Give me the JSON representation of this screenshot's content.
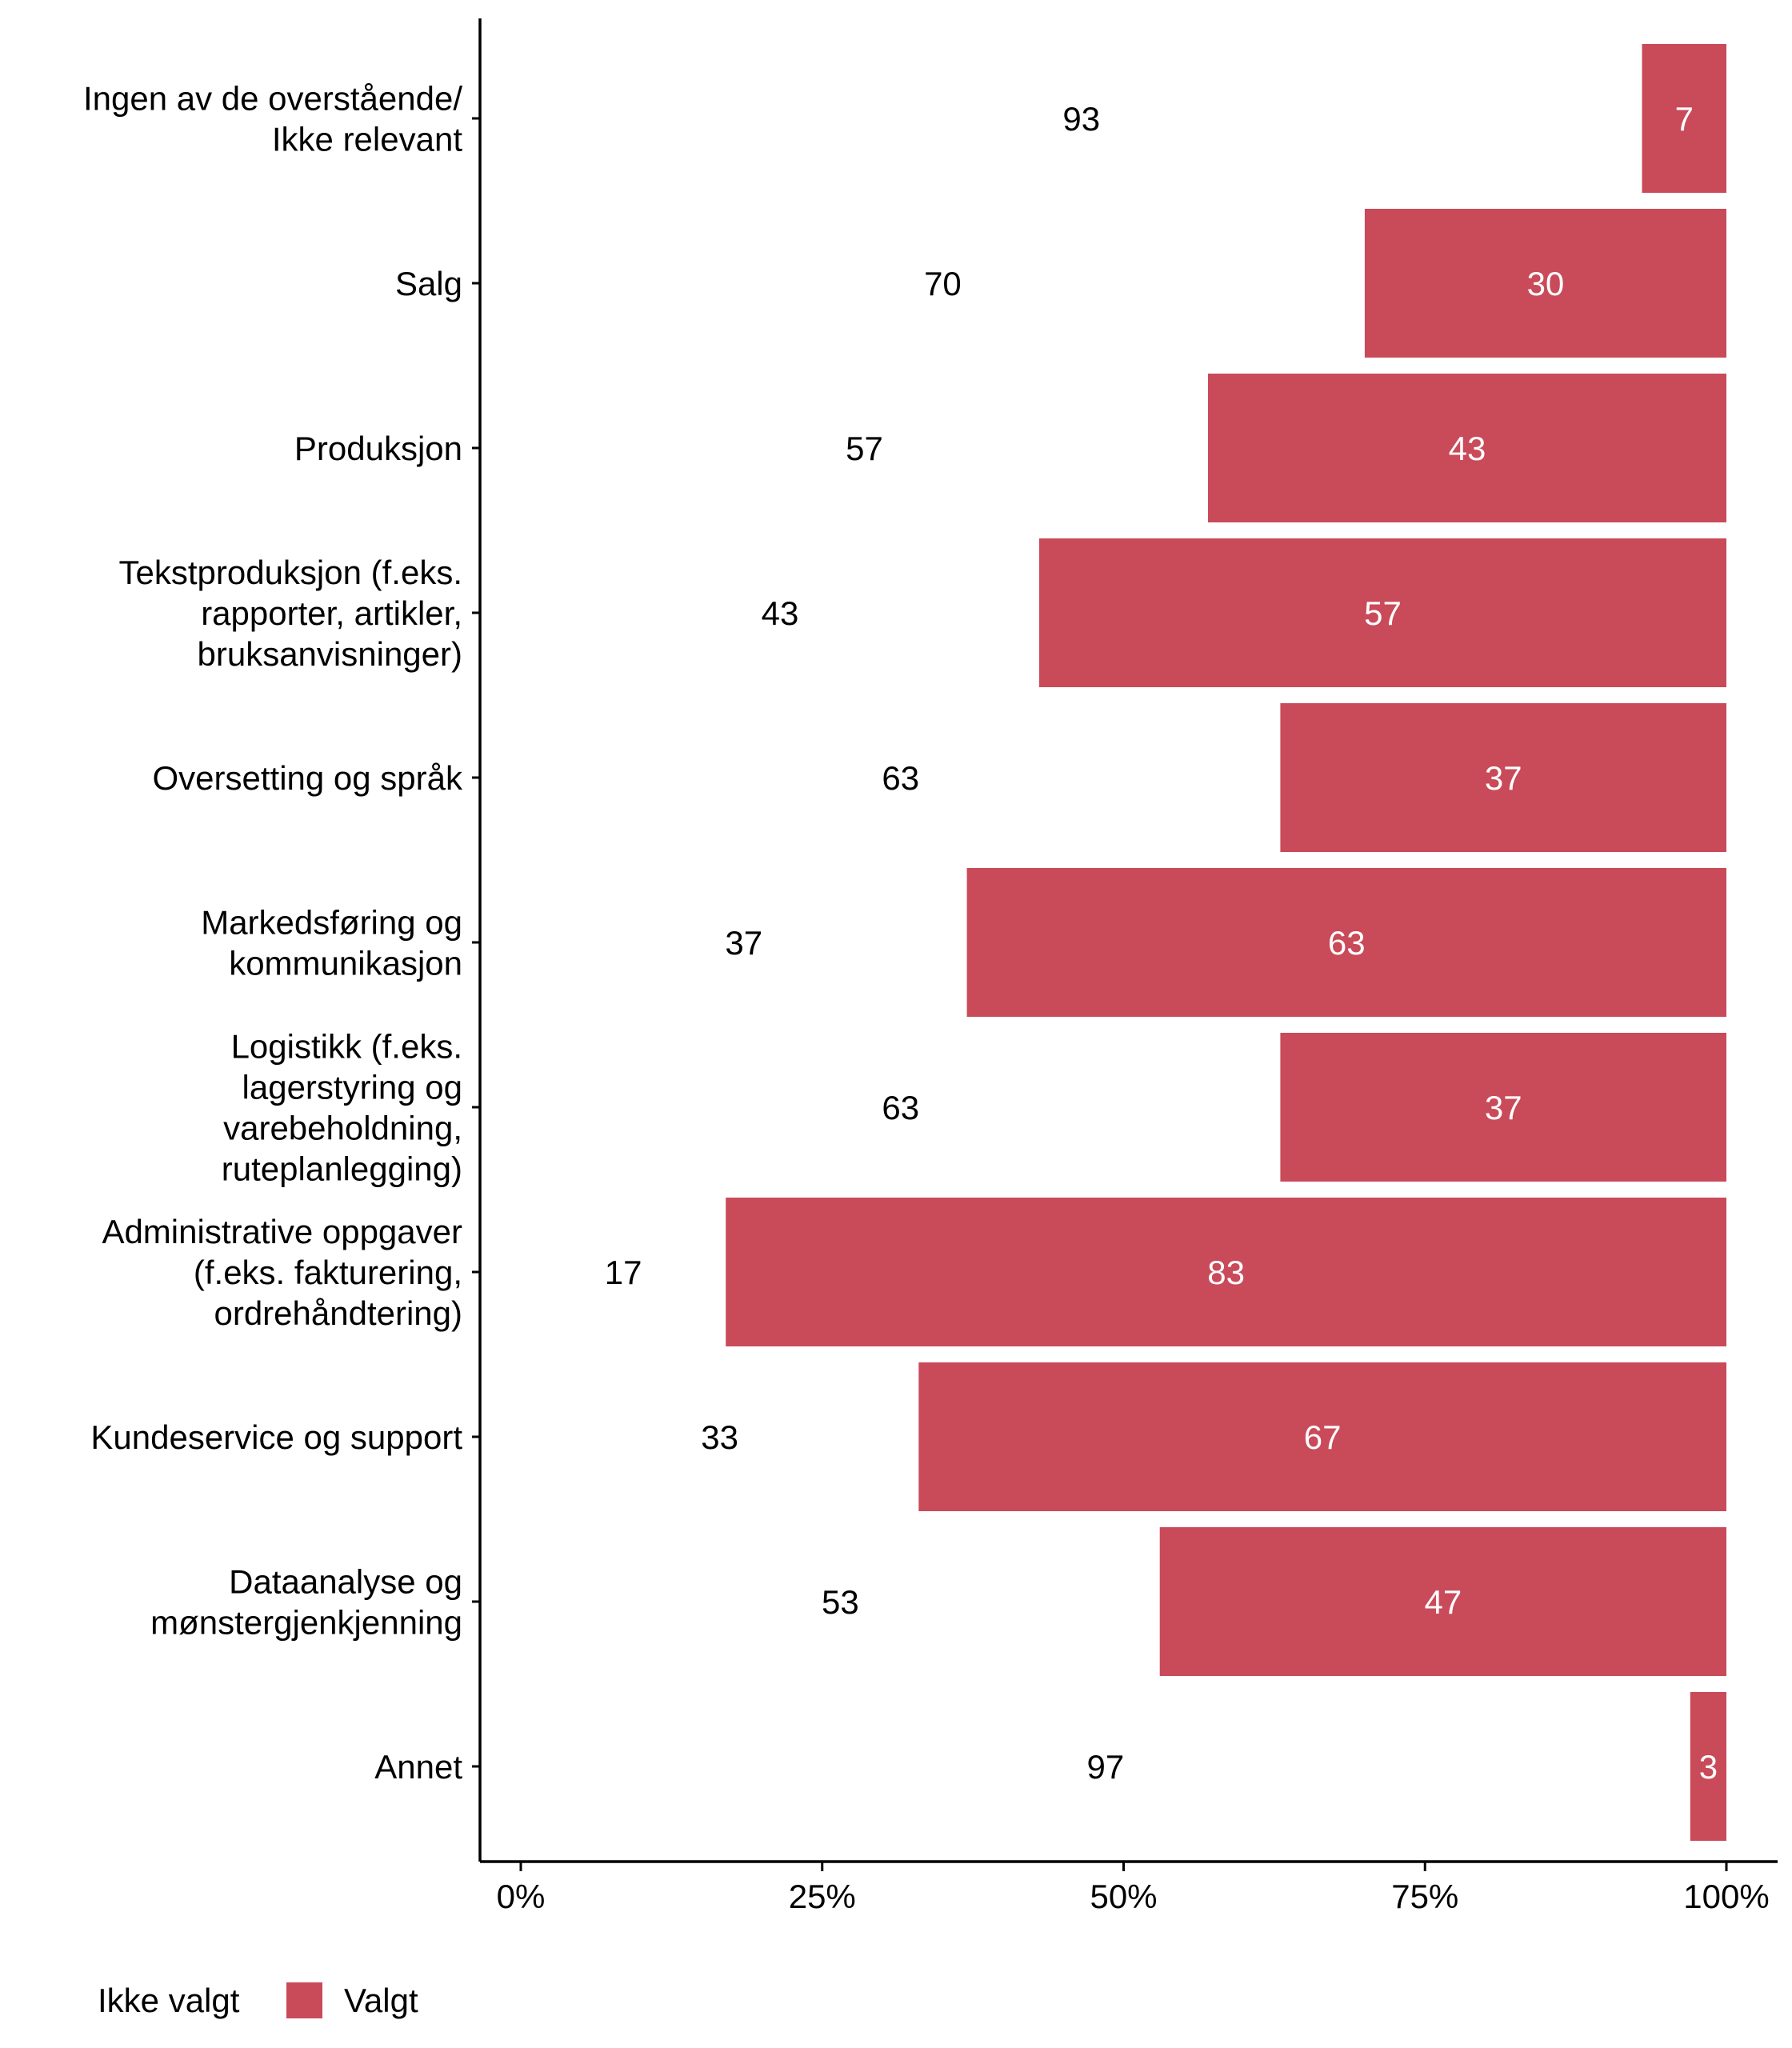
{
  "chart_data": {
    "type": "bar",
    "orientation": "horizontal",
    "stacked": true,
    "percent_axis": true,
    "title": "",
    "xlabel": "",
    "ylabel": "",
    "xlim": [
      0,
      100
    ],
    "x_ticks": [
      "0%",
      "25%",
      "50%",
      "75%",
      "100%"
    ],
    "x_tick_values": [
      0,
      25,
      50,
      75,
      100
    ],
    "grid": false,
    "legend_position": "bottom-left",
    "categories": [
      [
        "Ingen av de overstående/",
        "Ikke relevant"
      ],
      [
        "Salg"
      ],
      [
        "Produksjon"
      ],
      [
        "Tekstproduksjon (f.eks.",
        "rapporter, artikler,",
        "bruksanvisninger)"
      ],
      [
        "Oversetting og språk"
      ],
      [
        "Markedsføring og",
        "kommunikasjon"
      ],
      [
        "Logistikk (f.eks.",
        "lagerstyring og",
        "varebeholdning,",
        "ruteplanlegging)"
      ],
      [
        "Administrative oppgaver",
        "(f.eks. fakturering,",
        "ordrehåndtering)"
      ],
      [
        "Kundeservice og support"
      ],
      [
        "Dataanalyse og",
        "mønstergjenkjenning"
      ],
      [
        "Annet"
      ]
    ],
    "series": [
      {
        "name": "Ikke valgt",
        "color": "#FFFFFF",
        "label_color": "#000000",
        "values": [
          93,
          70,
          57,
          43,
          63,
          37,
          63,
          17,
          33,
          53,
          97
        ]
      },
      {
        "name": "Valgt",
        "color": "#C94A59",
        "label_color": "#FFFFFF",
        "values": [
          7,
          30,
          43,
          57,
          37,
          63,
          37,
          83,
          67,
          47,
          3
        ]
      }
    ]
  }
}
